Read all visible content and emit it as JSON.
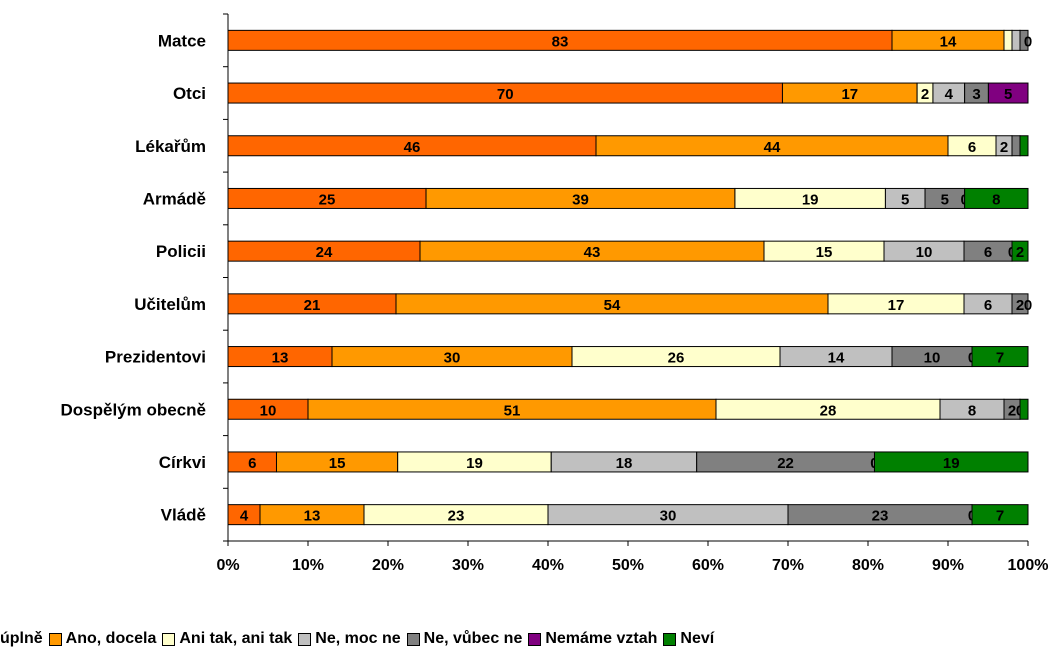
{
  "chart_data": {
    "type": "bar",
    "orientation": "horizontal",
    "stacked": "percent",
    "categories": [
      "Matce",
      "Otci",
      "Lékařům",
      "Armádě",
      "Policii",
      "Učitelům",
      "Prezidentovi",
      "Dospělým obecně",
      "Církvi",
      "Vládě"
    ],
    "series": [
      {
        "name": "Ano, úplně",
        "label": "úplně",
        "color": "#ff6600",
        "values": [
          83,
          70,
          46,
          25,
          24,
          21,
          13,
          10,
          6,
          4
        ]
      },
      {
        "name": "Ano, docela",
        "label": "Ano, docela",
        "color": "#ff9900",
        "values": [
          14,
          17,
          44,
          39,
          43,
          54,
          30,
          51,
          15,
          13
        ]
      },
      {
        "name": "Ani tak, ani tak",
        "label": "Ani tak, ani tak",
        "color": "#ffffcc",
        "values": [
          1,
          2,
          6,
          19,
          15,
          17,
          26,
          28,
          19,
          23
        ]
      },
      {
        "name": "Ne, moc ne",
        "label": "Ne, moc ne",
        "color": "#c0c0c0",
        "values": [
          1,
          4,
          2,
          5,
          10,
          6,
          14,
          8,
          18,
          30
        ]
      },
      {
        "name": "Ne, vůbec ne",
        "label": "Ne, vůbec ne",
        "color": "#808080",
        "values": [
          1,
          3,
          1,
          5,
          6,
          2,
          10,
          2,
          22,
          23
        ]
      },
      {
        "name": "Nemáme vztah",
        "label": "Nemáme vztah",
        "color": "#800080",
        "values": [
          0,
          5,
          0,
          0,
          0,
          0,
          0,
          0,
          0,
          0
        ]
      },
      {
        "name": "Neví",
        "label": "Neví",
        "color": "#008000",
        "values": [
          0,
          0,
          1,
          8,
          2,
          0,
          7,
          1,
          19,
          7
        ]
      }
    ],
    "xlim": [
      0,
      100
    ],
    "xticks": [
      "0%",
      "10%",
      "20%",
      "30%",
      "40%",
      "50%",
      "60%",
      "70%",
      "80%",
      "90%",
      "100%"
    ],
    "legend_position": "bottom",
    "grid": false
  }
}
